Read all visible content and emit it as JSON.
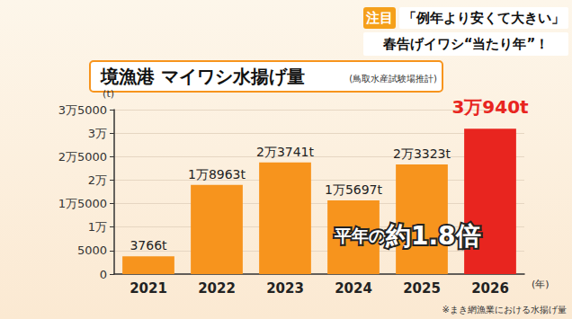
{
  "header": {
    "badge": "注目",
    "headline1": "「例年より安くて大きい」",
    "headline2": "春告げイワシ“当たり年”！"
  },
  "chart_data": {
    "type": "bar",
    "title": "境漁港 マイワシ水揚げ量",
    "subtitle": "(鳥取水産試験場推計)",
    "y_label": "(t)",
    "x_label": "(年)",
    "categories": [
      "2021",
      "2022",
      "2023",
      "2024",
      "2025",
      "2026"
    ],
    "values": [
      3766,
      18963,
      23741,
      15697,
      23323,
      30940
    ],
    "value_labels": [
      "3766t",
      "1万8963t",
      "2万3741t",
      "1万5697t",
      "2万3323t",
      "3万940t"
    ],
    "color": "#f7941d",
    "colors": [
      "#f7941d",
      "#f7941d",
      "#f7941d",
      "#f7941d",
      "#f7941d",
      "#e8251f"
    ],
    "ylim": [
      0,
      35000
    ],
    "yticks": [
      0,
      5000,
      {
        "value": 10000,
        "label": "1万"
      },
      {
        "value": 15000,
        "label": "1万5000"
      },
      {
        "value": 20000,
        "label": "2万"
      },
      {
        "value": 25000,
        "label": "2万5000"
      },
      {
        "value": 30000,
        "label": "3万"
      },
      {
        "value": 35000,
        "label": "3万5000"
      }
    ],
    "grid": true,
    "data_labels": true,
    "annotation": {
      "prefix": "平年の",
      "emphasis": "約1.8倍"
    },
    "note": "※まき網漁業における水揚げ量"
  }
}
